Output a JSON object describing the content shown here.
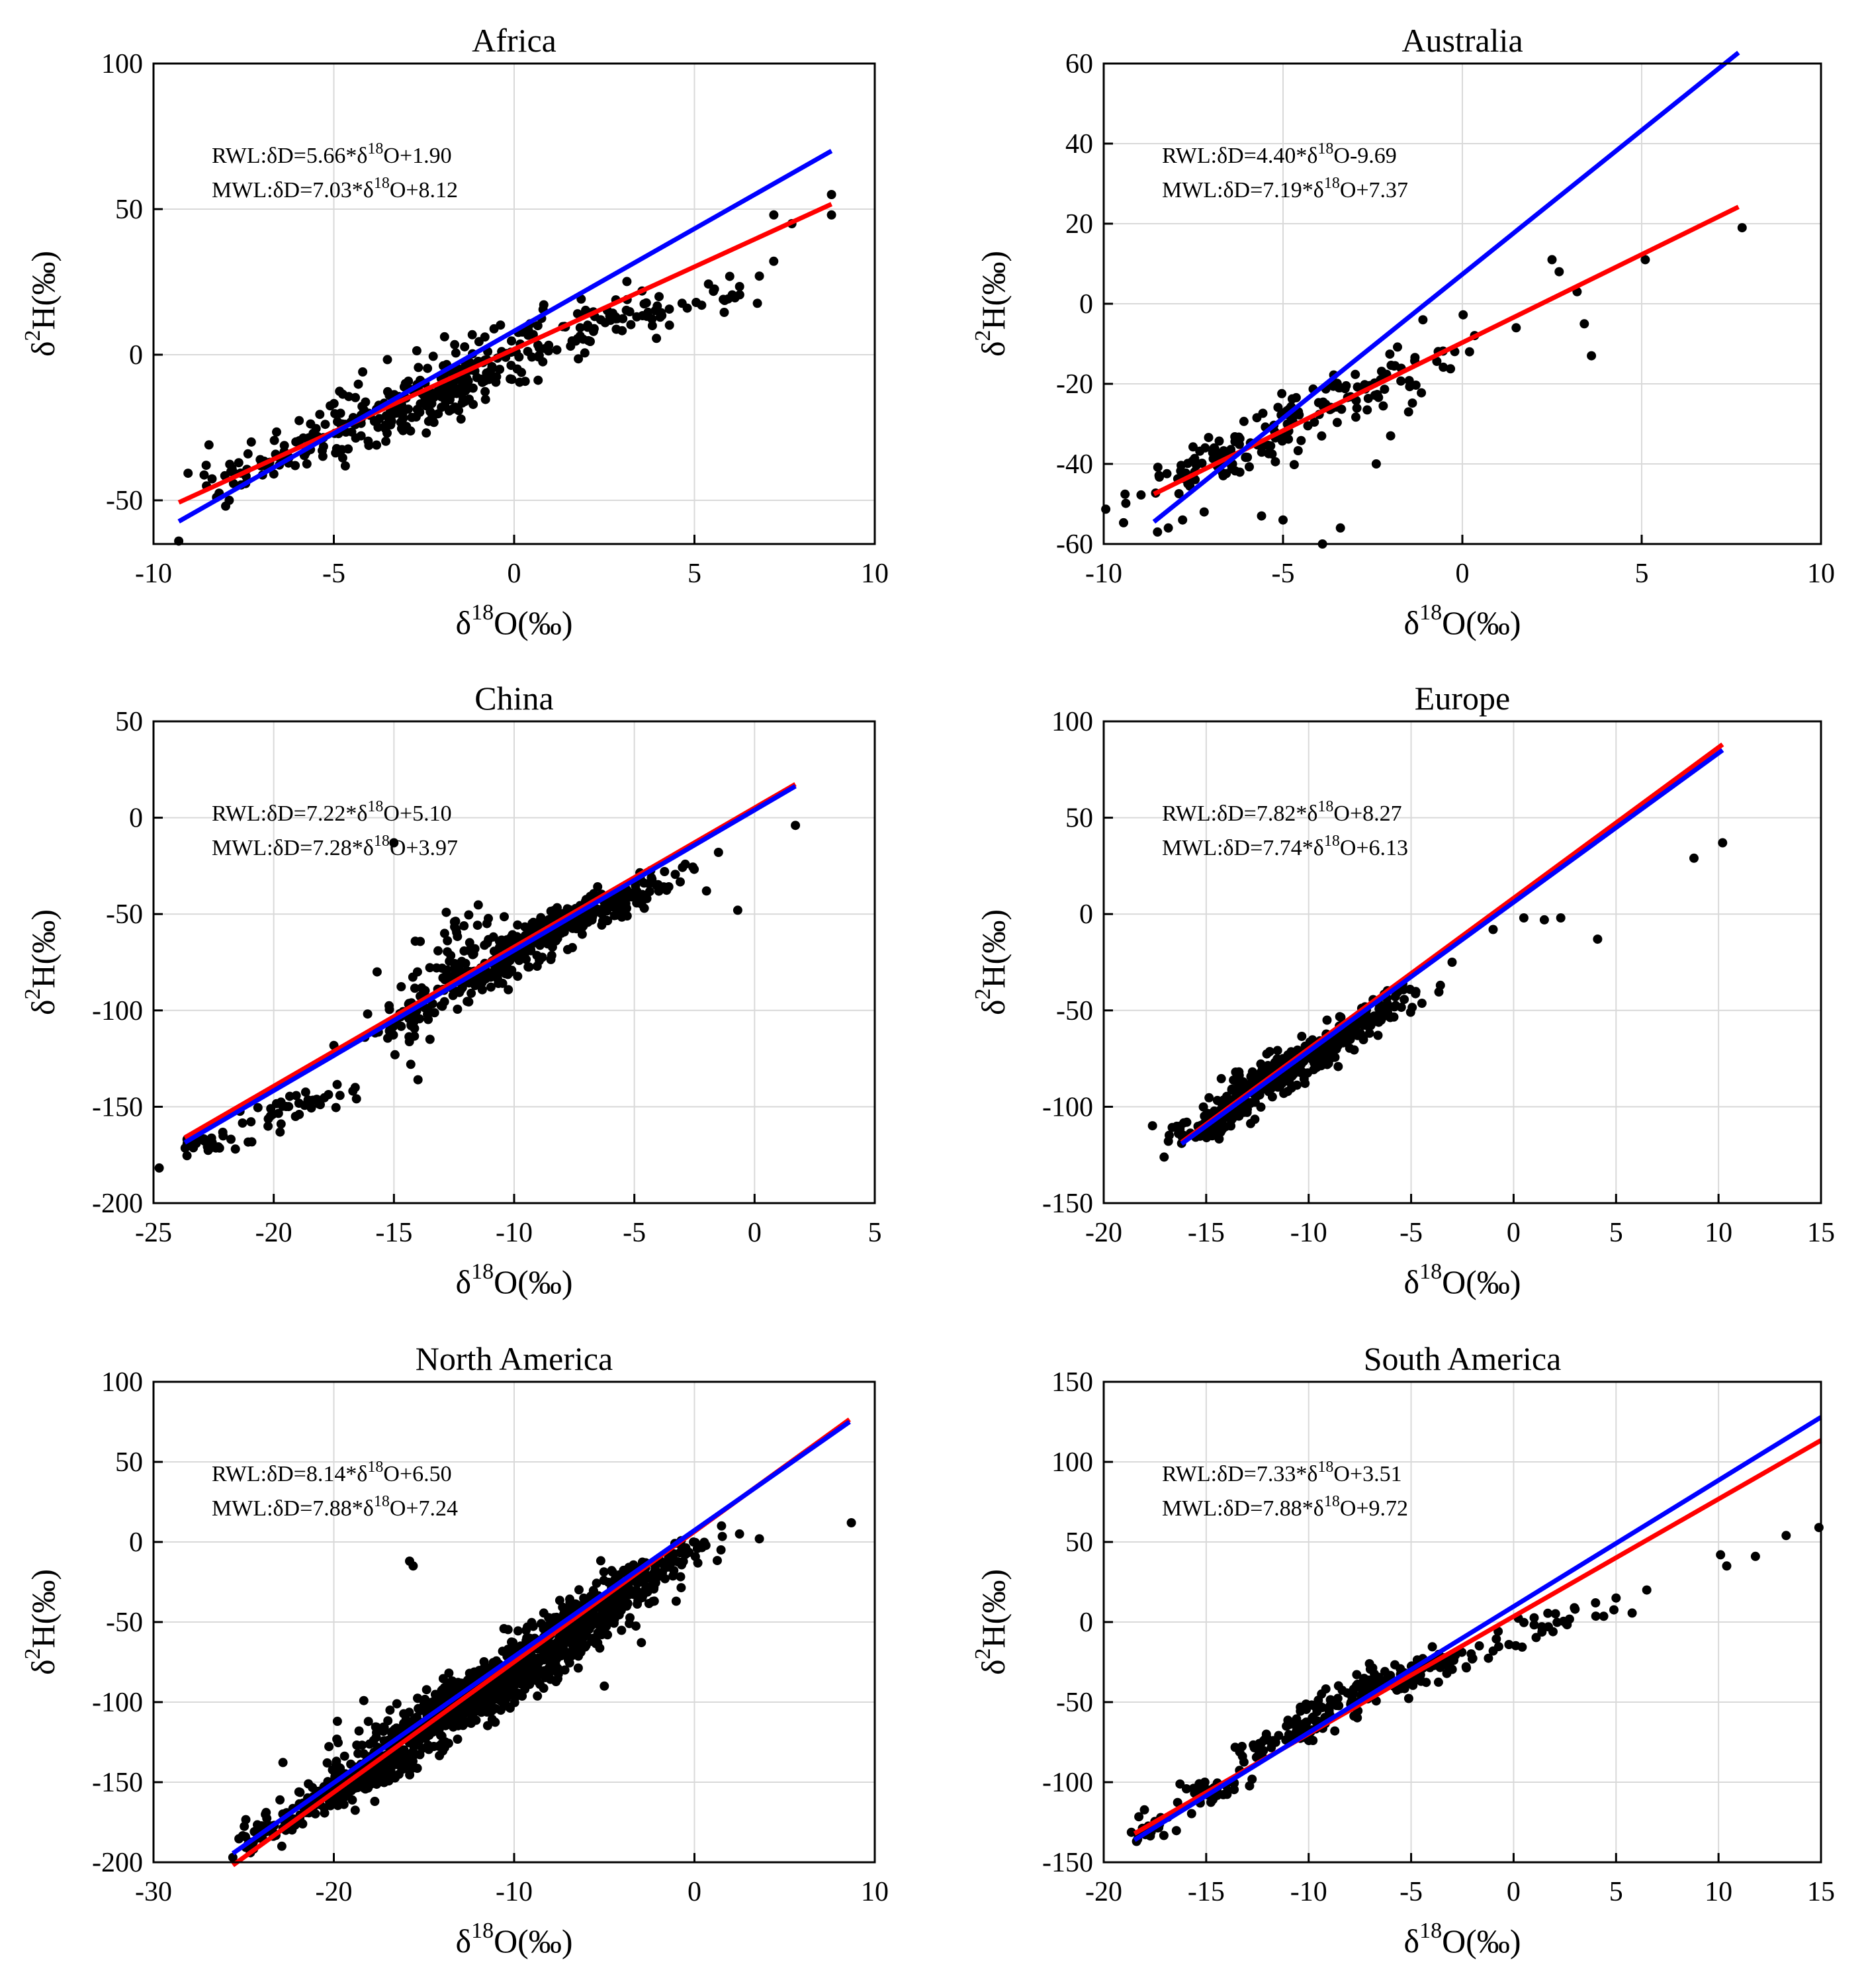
{
  "colors": {
    "rwl": "#ff0000",
    "mwl": "#0000ff",
    "points": "#000000",
    "grid": "#d9d9d9",
    "frame": "#000000"
  },
  "axis_label_parts": {
    "x": {
      "prefix": "δ",
      "sup": "18",
      "suffix": "O(‰)"
    },
    "y": {
      "prefix": "δ",
      "sup": "2",
      "suffix": "H(‰)"
    }
  },
  "chart_data": [
    {
      "type": "scatter",
      "title": "Africa",
      "xlabel": "δ18O(‰)",
      "ylabel": "δ2H(‰)",
      "xlim": [
        -10,
        10
      ],
      "ylim": [
        -65,
        100
      ],
      "xticks": [
        -10,
        -5,
        0,
        5,
        10
      ],
      "yticks": [
        -50,
        0,
        50,
        100
      ],
      "grid": true,
      "rwl": {
        "label": "RWL",
        "slope": 5.66,
        "intercept": 1.9,
        "x_range": [
          -9.3,
          8.8
        ],
        "eq": {
          "a": "RWL:δD=5.66*δ",
          "sup": "18",
          "b": "O+1.90"
        }
      },
      "mwl": {
        "label": "MWL",
        "slope": 7.03,
        "intercept": 8.12,
        "x_range": [
          -9.3,
          8.8
        ],
        "eq": {
          "a": "MWL:δD=7.03*δ",
          "sup": "18",
          "b": "O+8.12"
        }
      },
      "points": {
        "clusters": [
          [
            -4,
            -25,
            2.2,
            0.7,
            4,
            140
          ],
          [
            -1.5,
            -8,
            2,
            0.7,
            4,
            150
          ],
          [
            0,
            5,
            3,
            0.6,
            4,
            60
          ],
          [
            4,
            15,
            2,
            0.6,
            4,
            40
          ],
          [
            -7.5,
            -42,
            0.8,
            0.6,
            3,
            15
          ]
        ],
        "extra": [
          [
            -9.3,
            -64
          ],
          [
            8.8,
            55
          ],
          [
            8.8,
            48
          ],
          [
            7.2,
            48
          ],
          [
            7.7,
            45
          ],
          [
            6.8,
            27
          ],
          [
            5.8,
            19
          ],
          [
            5.2,
            17
          ],
          [
            4.8,
            16
          ],
          [
            3.4,
            13
          ],
          [
            2.4,
            12
          ],
          [
            2.2,
            8
          ],
          [
            -8,
            -52
          ],
          [
            -7.9,
            -50
          ]
        ]
      }
    },
    {
      "type": "scatter",
      "title": "Australia",
      "xlabel": "δ18O(‰)",
      "ylabel": "δ2H(‰)",
      "xlim": [
        -10,
        10
      ],
      "ylim": [
        -60,
        60
      ],
      "xticks": [
        -10,
        -5,
        0,
        5,
        10
      ],
      "yticks": [
        -60,
        -40,
        -20,
        0,
        20,
        40,
        60
      ],
      "grid": true,
      "rwl": {
        "label": "RWL",
        "slope": 4.4,
        "intercept": -9.69,
        "x_range": [
          -8.6,
          7.7
        ],
        "eq": {
          "a": "RWL:δD=4.40*δ",
          "sup": "18",
          "b": "O-9.69"
        }
      },
      "mwl": {
        "label": "MWL",
        "slope": 7.19,
        "intercept": 7.37,
        "x_range": [
          -8.6,
          7.7
        ],
        "eq": {
          "a": "MWL:δD=7.19*δ",
          "sup": "18",
          "b": "O+7.37"
        }
      },
      "points": {
        "clusters": [
          [
            -6.5,
            -38,
            1.3,
            0.7,
            3,
            90
          ],
          [
            -4,
            -26,
            1.2,
            0.7,
            3,
            60
          ],
          [
            -2,
            -18,
            1,
            0.8,
            4,
            30
          ]
        ],
        "extra": [
          [
            -8.5,
            -57
          ],
          [
            -8.2,
            -56
          ],
          [
            -7.8,
            -54
          ],
          [
            -5.6,
            -53
          ],
          [
            -5,
            -54
          ],
          [
            -3.9,
            -60
          ],
          [
            -3.4,
            -56
          ],
          [
            -2.4,
            -40
          ],
          [
            -2,
            -33
          ],
          [
            -1.5,
            -27
          ],
          [
            -1.1,
            -4
          ],
          [
            0.2,
            -12
          ],
          [
            1.5,
            -6
          ],
          [
            2.5,
            11
          ],
          [
            2.7,
            8
          ],
          [
            3.2,
            3
          ],
          [
            3.4,
            -5
          ],
          [
            3.6,
            -13
          ],
          [
            5.1,
            11
          ],
          [
            7.8,
            19
          ],
          [
            -7.2,
            -52
          ]
        ]
      }
    },
    {
      "type": "scatter",
      "title": "China",
      "xlabel": "δ18O(‰)",
      "ylabel": "δ2H(‰)",
      "xlim": [
        -25,
        5
      ],
      "ylim": [
        -200,
        50
      ],
      "xticks": [
        -25,
        -20,
        -15,
        -10,
        -5,
        0,
        5
      ],
      "yticks": [
        -200,
        -150,
        -100,
        -50,
        0,
        50
      ],
      "grid": true,
      "rwl": {
        "label": "RWL",
        "slope": 7.22,
        "intercept": 5.1,
        "x_range": [
          -23.7,
          1.7
        ],
        "eq": {
          "a": "RWL:δD=7.22*δ",
          "sup": "18",
          "b": "O+5.10"
        }
      },
      "mwl": {
        "label": "MWL",
        "slope": 7.28,
        "intercept": 3.97,
        "x_range": [
          -23.7,
          1.7
        ],
        "eq": {
          "a": "MWL:δD=7.28*δ",
          "sup": "18",
          "b": "O+3.97"
        }
      },
      "points": {
        "clusters": [
          [
            -8,
            -55,
            2.3,
            0.7,
            5,
            260
          ],
          [
            -11,
            -80,
            1.5,
            0.7,
            5,
            120
          ],
          [
            -14.5,
            -105,
            1,
            0.7,
            5,
            50
          ],
          [
            -19,
            -150,
            1.4,
            0.5,
            4,
            40
          ],
          [
            -22.5,
            -170,
            0.8,
            0.4,
            3,
            25
          ],
          [
            -12.5,
            -60,
            0.8,
            1,
            6,
            25
          ]
        ],
        "extra": [
          [
            1.7,
            -4
          ],
          [
            -0.7,
            -48
          ],
          [
            -1.5,
            -18
          ],
          [
            -15.7,
            -80
          ],
          [
            -15,
            -13
          ],
          [
            -14.3,
            -128
          ],
          [
            -14,
            -136
          ],
          [
            -13.5,
            -115
          ],
          [
            -2,
            -38
          ]
        ]
      }
    },
    {
      "type": "scatter",
      "title": "Europe",
      "xlabel": "δ18O(‰)",
      "ylabel": "δ2H(‰)",
      "xlim": [
        -20,
        15
      ],
      "ylim": [
        -150,
        100
      ],
      "xticks": [
        -20,
        -15,
        -10,
        -5,
        0,
        5,
        10,
        15
      ],
      "yticks": [
        -150,
        -100,
        -50,
        0,
        50,
        100
      ],
      "grid": true,
      "rwl": {
        "label": "RWL",
        "slope": 7.82,
        "intercept": 8.27,
        "x_range": [
          -16.2,
          10.2
        ],
        "eq": {
          "a": "RWL:δD=7.82*δ",
          "sup": "18",
          "b": "O+8.27"
        }
      },
      "mwl": {
        "label": "MWL",
        "slope": 7.74,
        "intercept": 6.13,
        "x_range": [
          -16.2,
          10.2
        ],
        "eq": {
          "a": "MWL:δD=7.74*δ",
          "sup": "18",
          "b": "O+6.13"
        }
      },
      "points": {
        "clusters": [
          [
            -11,
            -80,
            2.2,
            0.7,
            5,
            320
          ],
          [
            -14.5,
            -108,
            1,
            0.6,
            4,
            70
          ],
          [
            -7,
            -52,
            1.2,
            0.6,
            4,
            50
          ]
        ],
        "extra": [
          [
            -3,
            -25
          ],
          [
            -1,
            -8
          ],
          [
            0.5,
            -2
          ],
          [
            1.5,
            -3
          ],
          [
            2.3,
            -2
          ],
          [
            4.1,
            -13
          ],
          [
            8.8,
            29
          ],
          [
            10.2,
            37
          ],
          [
            -16.2,
            -119
          ]
        ]
      }
    },
    {
      "type": "scatter",
      "title": "North America",
      "xlabel": "δ18O(‰)",
      "ylabel": "δ2H(‰)",
      "xlim": [
        -30,
        10
      ],
      "ylim": [
        -200,
        100
      ],
      "xticks": [
        -30,
        -20,
        -10,
        0,
        10
      ],
      "yticks": [
        -200,
        -150,
        -100,
        -50,
        0,
        50,
        100
      ],
      "grid": true,
      "rwl": {
        "label": "RWL",
        "slope": 8.14,
        "intercept": 6.5,
        "x_range": [
          -25.6,
          8.6
        ],
        "eq": {
          "a": "RWL:δD=8.14*δ",
          "sup": "18",
          "b": "O+6.50"
        }
      },
      "mwl": {
        "label": "MWL",
        "slope": 7.88,
        "intercept": 7.24,
        "x_range": [
          -25.6,
          8.6
        ],
        "eq": {
          "a": "MWL:δD=7.88*δ",
          "sup": "18",
          "b": "O+7.24"
        }
      },
      "points": {
        "clusters": [
          [
            -12,
            -95,
            3.2,
            0.7,
            9,
            600
          ],
          [
            -6,
            -45,
            2.2,
            0.7,
            8,
            300
          ],
          [
            -19,
            -150,
            2,
            0.6,
            6,
            200
          ],
          [
            -23.5,
            -180,
            1,
            0.5,
            4,
            40
          ],
          [
            -2,
            -15,
            1.5,
            0.6,
            5,
            60
          ]
        ],
        "extra": [
          [
            -15.8,
            -12
          ],
          [
            -15.6,
            -15
          ],
          [
            -19.8,
            -112
          ],
          [
            -18.6,
            -118
          ],
          [
            -25.6,
            -197
          ],
          [
            1.5,
            10
          ],
          [
            2.5,
            5
          ],
          [
            3.6,
            2
          ],
          [
            8.7,
            12
          ],
          [
            -5,
            -90
          ]
        ]
      }
    },
    {
      "type": "scatter",
      "title": "South America",
      "xlabel": "δ18O(‰)",
      "ylabel": "δ2H(‰)",
      "xlim": [
        -20,
        15
      ],
      "ylim": [
        -150,
        150
      ],
      "xticks": [
        -20,
        -15,
        -10,
        -5,
        0,
        5,
        10,
        15
      ],
      "yticks": [
        -150,
        -100,
        -50,
        0,
        50,
        100,
        150
      ],
      "grid": true,
      "rwl": {
        "label": "RWL",
        "slope": 7.33,
        "intercept": 3.51,
        "x_range": [
          -18.5,
          15
        ],
        "eq": {
          "a": "RWL:δD=7.33*δ",
          "sup": "18",
          "b": "O+3.51"
        }
      },
      "mwl": {
        "label": "MWL",
        "slope": 7.88,
        "intercept": 9.72,
        "x_range": [
          -18.5,
          15
        ],
        "eq": {
          "a": "MWL:δD=7.88*δ",
          "sup": "18",
          "b": "O+9.72"
        }
      },
      "points": {
        "clusters": [
          [
            -6,
            -38,
            2.5,
            0.6,
            5,
            160
          ],
          [
            -11,
            -72,
            1.5,
            0.6,
            4,
            60
          ],
          [
            -15,
            -105,
            1.2,
            0.5,
            4,
            40
          ],
          [
            -17.5,
            -128,
            0.6,
            0.5,
            3,
            20
          ],
          [
            1,
            -5,
            1.5,
            0.5,
            4,
            30
          ]
        ],
        "extra": [
          [
            3,
            8
          ],
          [
            4,
            12
          ],
          [
            5,
            15
          ],
          [
            6.5,
            20
          ],
          [
            10.1,
            42
          ],
          [
            10.4,
            35
          ],
          [
            11.8,
            41
          ],
          [
            13.3,
            54
          ],
          [
            14.9,
            59
          ],
          [
            -18.4,
            -137
          ]
        ]
      }
    }
  ]
}
